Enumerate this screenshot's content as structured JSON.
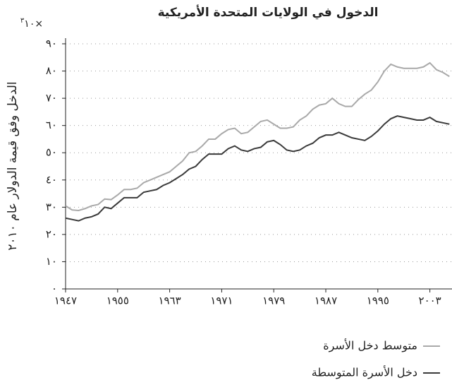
{
  "chart_data": {
    "type": "line",
    "title": "الدخول في الولايات المتحدة الأمريكية",
    "y_label": "الدخل وفق قيمة الدولار عام ٢٠١٠",
    "offset_text": {
      "base": "١٠×",
      "exponent": "٣"
    },
    "x": [
      1947,
      1948,
      1949,
      1950,
      1951,
      1952,
      1953,
      1954,
      1955,
      1956,
      1957,
      1958,
      1959,
      1960,
      1961,
      1962,
      1963,
      1964,
      1965,
      1966,
      1967,
      1968,
      1969,
      1970,
      1971,
      1972,
      1973,
      1974,
      1975,
      1976,
      1977,
      1978,
      1979,
      1980,
      1981,
      1982,
      1983,
      1984,
      1985,
      1986,
      1987,
      1988,
      1989,
      1990,
      1991,
      1992,
      1993,
      1994,
      1995,
      1996,
      1997,
      1998,
      1999,
      2000,
      2001,
      2002,
      2003,
      2004,
      2005,
      2006
    ],
    "series": [
      {
        "name": "متوسط دخل الأسرة",
        "color": "#a9a9a9",
        "values": [
          30.5,
          29,
          28.8,
          29.5,
          30.5,
          31,
          33,
          32.8,
          34.5,
          36.5,
          36.5,
          37,
          39,
          40,
          41,
          42,
          43,
          45,
          47,
          50,
          50.5,
          52.5,
          55,
          55,
          57,
          58.5,
          59,
          57,
          57.5,
          59.5,
          61.5,
          62,
          60.5,
          59,
          59,
          59.5,
          62,
          63.5,
          66,
          67.5,
          68,
          70,
          68,
          67,
          67,
          69.5,
          71.5,
          73,
          76,
          80,
          82.5,
          81.5,
          81,
          81,
          81,
          81.5,
          83,
          80.5,
          79.5,
          78
        ]
      },
      {
        "name": "دخل الأسرة المتوسطة",
        "color": "#3a3a3a",
        "values": [
          26,
          25.5,
          25,
          26,
          26.5,
          27.5,
          30,
          29.5,
          31.5,
          33.5,
          33.5,
          33.5,
          35.5,
          36,
          36.5,
          38,
          39,
          40.5,
          42,
          44,
          45,
          47.5,
          49.5,
          49.5,
          49.5,
          51.5,
          52.5,
          51,
          50.5,
          51.5,
          52,
          54,
          54.5,
          53,
          51,
          50.5,
          51,
          52.5,
          53.5,
          55.5,
          56.5,
          56.5,
          57.5,
          56.5,
          55.5,
          55,
          54.5,
          56,
          58,
          60.5,
          62.5,
          63.5,
          63,
          62.5,
          62,
          62,
          63,
          61.5,
          61,
          60.5
        ]
      }
    ],
    "xlim": [
      1947,
      2006.4
    ],
    "xticks": [
      {
        "value": 1947,
        "label": "١٩٤٧"
      },
      {
        "value": 1955,
        "label": "١٩٥٥"
      },
      {
        "value": 1963,
        "label": "١٩٦٣"
      },
      {
        "value": 1971,
        "label": "١٩٧١"
      },
      {
        "value": 1979,
        "label": "١٩٧٩"
      },
      {
        "value": 1987,
        "label": "١٩٨٧"
      },
      {
        "value": 1995,
        "label": "١٩٩٥"
      },
      {
        "value": 2003,
        "label": "٢٠٠٣"
      }
    ],
    "ylim": [
      0,
      90
    ],
    "yticks": [
      {
        "value": 0,
        "label": "٠"
      },
      {
        "value": 10,
        "label": "١٠"
      },
      {
        "value": 20,
        "label": "٢٠"
      },
      {
        "value": 30,
        "label": "٣٠"
      },
      {
        "value": 40,
        "label": "٤٠"
      },
      {
        "value": 50,
        "label": "٥٠"
      },
      {
        "value": 60,
        "label": "٦٠"
      },
      {
        "value": 70,
        "label": "٧٠"
      },
      {
        "value": 80,
        "label": "٨٠"
      },
      {
        "value": 90,
        "label": "٩٠"
      }
    ],
    "grid": true
  }
}
